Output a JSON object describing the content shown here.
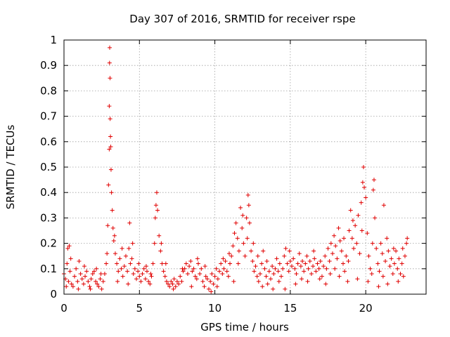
{
  "chart_data": {
    "type": "scatter",
    "title": "Day 307 of 2016, SRMTID for receiver rspe",
    "xlabel": "GPS time / hours",
    "ylabel": "SRMTID / TECUs",
    "xlim": [
      0,
      24
    ],
    "ylim": [
      0,
      1
    ],
    "xticks": [
      0,
      5,
      10,
      15,
      20
    ],
    "xtick_labels": [
      "0",
      "5",
      "10",
      "15",
      "20"
    ],
    "yticks": [
      0,
      0.1,
      0.2,
      0.3,
      0.4,
      0.5,
      0.6,
      0.7,
      0.8,
      0.9,
      1
    ],
    "ytick_labels": [
      "0",
      "0.1",
      "0.2",
      "0.3",
      "0.4",
      "0.5",
      "0.6",
      "0.7",
      "0.8",
      "0.9",
      "1"
    ],
    "grid": true,
    "marker": "+",
    "color": "#e00000",
    "series": [
      {
        "name": "SRMTID",
        "points": [
          [
            0.0,
            0.08
          ],
          [
            0.1,
            0.06
          ],
          [
            0.2,
            0.12
          ],
          [
            0.25,
            0.18
          ],
          [
            0.3,
            0.05
          ],
          [
            0.35,
            0.19
          ],
          [
            0.4,
            0.09
          ],
          [
            0.5,
            0.04
          ],
          [
            0.6,
            0.03
          ],
          [
            0.7,
            0.07
          ],
          [
            0.8,
            0.1
          ],
          [
            0.9,
            0.05
          ],
          [
            1.0,
            0.13
          ],
          [
            1.1,
            0.08
          ],
          [
            1.2,
            0.06
          ],
          [
            1.3,
            0.04
          ],
          [
            1.4,
            0.07
          ],
          [
            1.5,
            0.09
          ],
          [
            1.6,
            0.05
          ],
          [
            1.7,
            0.03
          ],
          [
            1.8,
            0.06
          ],
          [
            1.9,
            0.08
          ],
          [
            2.0,
            0.09
          ],
          [
            2.1,
            0.05
          ],
          [
            2.2,
            0.04
          ],
          [
            2.3,
            0.03
          ],
          [
            2.4,
            0.06
          ],
          [
            2.5,
            0.02
          ],
          [
            2.6,
            0.05
          ],
          [
            2.7,
            0.08
          ],
          [
            2.8,
            0.12
          ],
          [
            2.85,
            0.16
          ],
          [
            2.9,
            0.27
          ],
          [
            2.95,
            0.43
          ],
          [
            3.0,
            0.57
          ],
          [
            3.0,
            0.74
          ],
          [
            3.02,
            0.91
          ],
          [
            3.03,
            0.97
          ],
          [
            3.05,
            0.85
          ],
          [
            3.06,
            0.69
          ],
          [
            3.08,
            0.62
          ],
          [
            3.1,
            0.58
          ],
          [
            3.12,
            0.49
          ],
          [
            3.15,
            0.4
          ],
          [
            3.2,
            0.33
          ],
          [
            3.25,
            0.26
          ],
          [
            3.3,
            0.21
          ],
          [
            3.4,
            0.16
          ],
          [
            3.5,
            0.12
          ],
          [
            3.6,
            0.09
          ],
          [
            3.7,
            0.14
          ],
          [
            3.8,
            0.1
          ],
          [
            3.9,
            0.07
          ],
          [
            4.0,
            0.11
          ],
          [
            4.1,
            0.15
          ],
          [
            4.2,
            0.09
          ],
          [
            4.3,
            0.18
          ],
          [
            4.35,
            0.28
          ],
          [
            4.4,
            0.12
          ],
          [
            4.5,
            0.14
          ],
          [
            4.6,
            0.08
          ],
          [
            4.7,
            0.1
          ],
          [
            4.8,
            0.06
          ],
          [
            4.9,
            0.09
          ],
          [
            5.0,
            0.07
          ],
          [
            5.1,
            0.05
          ],
          [
            5.2,
            0.08
          ],
          [
            5.3,
            0.1
          ],
          [
            5.4,
            0.06
          ],
          [
            5.5,
            0.09
          ],
          [
            5.6,
            0.05
          ],
          [
            5.7,
            0.04
          ],
          [
            5.8,
            0.07
          ],
          [
            5.9,
            0.12
          ],
          [
            6.0,
            0.2
          ],
          [
            6.05,
            0.3
          ],
          [
            6.1,
            0.35
          ],
          [
            6.15,
            0.4
          ],
          [
            6.2,
            0.33
          ],
          [
            6.3,
            0.23
          ],
          [
            6.4,
            0.17
          ],
          [
            6.5,
            0.12
          ],
          [
            6.6,
            0.09
          ],
          [
            6.7,
            0.07
          ],
          [
            6.8,
            0.05
          ],
          [
            6.9,
            0.04
          ],
          [
            7.0,
            0.03
          ],
          [
            7.1,
            0.05
          ],
          [
            7.2,
            0.04
          ],
          [
            7.3,
            0.06
          ],
          [
            7.4,
            0.03
          ],
          [
            7.5,
            0.05
          ],
          [
            7.6,
            0.04
          ],
          [
            7.7,
            0.07
          ],
          [
            7.8,
            0.05
          ],
          [
            7.9,
            0.09
          ],
          [
            8.0,
            0.1
          ],
          [
            8.1,
            0.12
          ],
          [
            8.2,
            0.08
          ],
          [
            8.3,
            0.11
          ],
          [
            8.4,
            0.13
          ],
          [
            8.5,
            0.09
          ],
          [
            8.6,
            0.1
          ],
          [
            8.7,
            0.07
          ],
          [
            8.8,
            0.06
          ],
          [
            8.9,
            0.12
          ],
          [
            9.0,
            0.08
          ],
          [
            9.1,
            0.1
          ],
          [
            9.2,
            0.05
          ],
          [
            9.3,
            0.03
          ],
          [
            9.4,
            0.07
          ],
          [
            9.5,
            0.06
          ],
          [
            9.6,
            0.02
          ],
          [
            9.7,
            0.05
          ],
          [
            9.8,
            0.08
          ],
          [
            9.9,
            0.04
          ],
          [
            10.0,
            0.07
          ],
          [
            10.1,
            0.1
          ],
          [
            10.2,
            0.06
          ],
          [
            10.3,
            0.09
          ],
          [
            10.4,
            0.12
          ],
          [
            10.5,
            0.08
          ],
          [
            10.6,
            0.1
          ],
          [
            10.7,
            0.13
          ],
          [
            10.8,
            0.09
          ],
          [
            10.9,
            0.07
          ],
          [
            11.0,
            0.12
          ],
          [
            11.1,
            0.15
          ],
          [
            11.2,
            0.19
          ],
          [
            11.3,
            0.24
          ],
          [
            11.4,
            0.28
          ],
          [
            11.5,
            0.22
          ],
          [
            11.6,
            0.17
          ],
          [
            11.7,
            0.34
          ],
          [
            11.8,
            0.26
          ],
          [
            11.9,
            0.2
          ],
          [
            12.0,
            0.15
          ],
          [
            12.1,
            0.3
          ],
          [
            12.2,
            0.39
          ],
          [
            12.25,
            0.35
          ],
          [
            12.3,
            0.28
          ],
          [
            12.4,
            0.17
          ],
          [
            12.5,
            0.13
          ],
          [
            12.6,
            0.09
          ],
          [
            12.7,
            0.11
          ],
          [
            12.8,
            0.07
          ],
          [
            12.9,
            0.05
          ],
          [
            13.0,
            0.08
          ],
          [
            13.1,
            0.12
          ],
          [
            13.2,
            0.17
          ],
          [
            13.3,
            0.1
          ],
          [
            13.4,
            0.07
          ],
          [
            13.5,
            0.04
          ],
          [
            13.6,
            0.09
          ],
          [
            13.7,
            0.06
          ],
          [
            13.8,
            0.11
          ],
          [
            13.9,
            0.08
          ],
          [
            14.0,
            0.1
          ],
          [
            14.1,
            0.14
          ],
          [
            14.2,
            0.09
          ],
          [
            14.3,
            0.12
          ],
          [
            14.4,
            0.07
          ],
          [
            14.5,
            0.1
          ],
          [
            14.6,
            0.15
          ],
          [
            14.7,
            0.18
          ],
          [
            14.8,
            0.12
          ],
          [
            14.9,
            0.09
          ],
          [
            15.0,
            0.13
          ],
          [
            15.1,
            0.11
          ],
          [
            15.2,
            0.14
          ],
          [
            15.3,
            0.1
          ],
          [
            15.4,
            0.08
          ],
          [
            15.5,
            0.12
          ],
          [
            15.6,
            0.16
          ],
          [
            15.7,
            0.11
          ],
          [
            15.8,
            0.13
          ],
          [
            15.9,
            0.09
          ],
          [
            16.0,
            0.12
          ],
          [
            16.1,
            0.15
          ],
          [
            16.2,
            0.1
          ],
          [
            16.3,
            0.13
          ],
          [
            16.4,
            0.08
          ],
          [
            16.5,
            0.11
          ],
          [
            16.6,
            0.14
          ],
          [
            16.7,
            0.09
          ],
          [
            16.8,
            0.12
          ],
          [
            16.9,
            0.1
          ],
          [
            17.0,
            0.13
          ],
          [
            17.1,
            0.07
          ],
          [
            17.2,
            0.11
          ],
          [
            17.3,
            0.15
          ],
          [
            17.4,
            0.1
          ],
          [
            17.5,
            0.18
          ],
          [
            17.6,
            0.13
          ],
          [
            17.7,
            0.2
          ],
          [
            17.8,
            0.16
          ],
          [
            17.9,
            0.23
          ],
          [
            18.0,
            0.19
          ],
          [
            18.1,
            0.14
          ],
          [
            18.2,
            0.26
          ],
          [
            18.3,
            0.21
          ],
          [
            18.4,
            0.17
          ],
          [
            18.5,
            0.12
          ],
          [
            18.6,
            0.09
          ],
          [
            18.7,
            0.15
          ],
          [
            18.8,
            0.05
          ],
          [
            18.9,
            0.25
          ],
          [
            19.0,
            0.33
          ],
          [
            19.1,
            0.22
          ],
          [
            19.2,
            0.18
          ],
          [
            19.3,
            0.27
          ],
          [
            19.4,
            0.2
          ],
          [
            19.5,
            0.31
          ],
          [
            19.6,
            0.16
          ],
          [
            19.7,
            0.36
          ],
          [
            19.8,
            0.44
          ],
          [
            19.85,
            0.5
          ],
          [
            19.9,
            0.42
          ],
          [
            20.0,
            0.38
          ],
          [
            20.1,
            0.24
          ],
          [
            20.2,
            0.15
          ],
          [
            20.3,
            0.1
          ],
          [
            20.4,
            0.08
          ],
          [
            20.5,
            0.41
          ],
          [
            20.55,
            0.45
          ],
          [
            20.6,
            0.3
          ],
          [
            20.7,
            0.18
          ],
          [
            20.8,
            0.12
          ],
          [
            20.9,
            0.09
          ],
          [
            21.0,
            0.2
          ],
          [
            21.1,
            0.16
          ],
          [
            21.2,
            0.35
          ],
          [
            21.3,
            0.13
          ],
          [
            21.4,
            0.22
          ],
          [
            21.5,
            0.17
          ],
          [
            21.6,
            0.11
          ],
          [
            21.7,
            0.14
          ],
          [
            21.8,
            0.08
          ],
          [
            21.9,
            0.12
          ],
          [
            22.0,
            0.17
          ],
          [
            22.1,
            0.1
          ],
          [
            22.2,
            0.14
          ],
          [
            22.3,
            0.08
          ],
          [
            22.4,
            0.12
          ],
          [
            22.5,
            0.07
          ],
          [
            22.6,
            0.15
          ],
          [
            22.7,
            0.2
          ],
          [
            22.75,
            0.22
          ],
          [
            0.15,
            0.03
          ],
          [
            0.45,
            0.14
          ],
          [
            0.95,
            0.02
          ],
          [
            1.35,
            0.11
          ],
          [
            1.75,
            0.02
          ],
          [
            2.15,
            0.1
          ],
          [
            2.45,
            0.08
          ],
          [
            3.35,
            0.23
          ],
          [
            3.55,
            0.05
          ],
          [
            3.85,
            0.18
          ],
          [
            4.25,
            0.04
          ],
          [
            4.55,
            0.2
          ],
          [
            4.95,
            0.12
          ],
          [
            5.45,
            0.11
          ],
          [
            5.75,
            0.08
          ],
          [
            6.45,
            0.2
          ],
          [
            6.75,
            0.12
          ],
          [
            7.25,
            0.02
          ],
          [
            7.85,
            0.1
          ],
          [
            8.45,
            0.03
          ],
          [
            8.85,
            0.14
          ],
          [
            9.35,
            0.11
          ],
          [
            9.75,
            0.01
          ],
          [
            10.15,
            0.03
          ],
          [
            10.55,
            0.14
          ],
          [
            10.95,
            0.16
          ],
          [
            11.25,
            0.05
          ],
          [
            11.55,
            0.12
          ],
          [
            11.85,
            0.31
          ],
          [
            12.15,
            0.22
          ],
          [
            12.55,
            0.2
          ],
          [
            12.85,
            0.15
          ],
          [
            13.15,
            0.03
          ],
          [
            13.45,
            0.13
          ],
          [
            13.85,
            0.02
          ],
          [
            14.25,
            0.05
          ],
          [
            14.65,
            0.02
          ],
          [
            14.95,
            0.17
          ],
          [
            15.35,
            0.04
          ],
          [
            15.75,
            0.06
          ],
          [
            16.15,
            0.05
          ],
          [
            16.55,
            0.17
          ],
          [
            16.95,
            0.06
          ],
          [
            17.35,
            0.04
          ],
          [
            17.65,
            0.08
          ],
          [
            17.95,
            0.1
          ],
          [
            18.25,
            0.07
          ],
          [
            18.55,
            0.22
          ],
          [
            18.85,
            0.13
          ],
          [
            19.15,
            0.29
          ],
          [
            19.45,
            0.06
          ],
          [
            19.75,
            0.25
          ],
          [
            20.15,
            0.05
          ],
          [
            20.45,
            0.2
          ],
          [
            20.85,
            0.03
          ],
          [
            21.15,
            0.07
          ],
          [
            21.45,
            0.04
          ],
          [
            21.85,
            0.18
          ],
          [
            22.15,
            0.05
          ],
          [
            22.45,
            0.18
          ]
        ]
      }
    ]
  }
}
